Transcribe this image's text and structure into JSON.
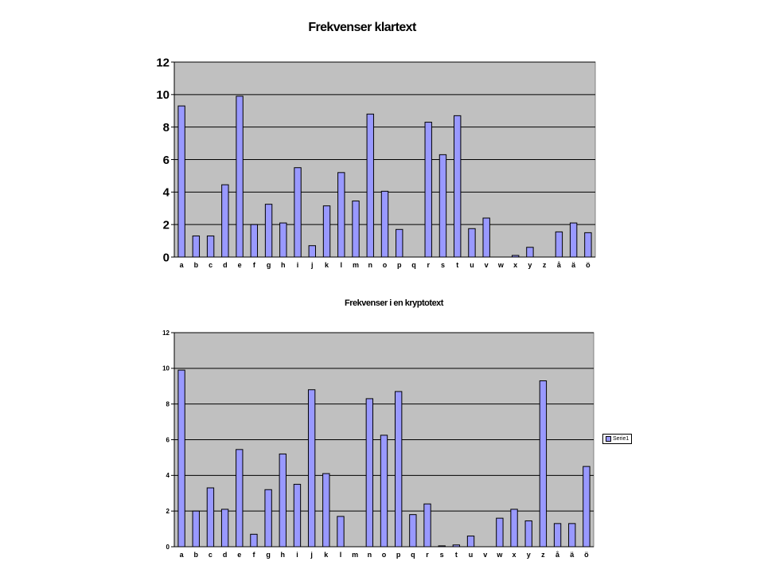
{
  "colors": {
    "bar_fill": "#9999ff",
    "plot_background": "#c0c0c0",
    "gridline": "#000000"
  },
  "chart_data": [
    {
      "type": "bar",
      "title": "Frekvenser klartext",
      "categories": [
        "a",
        "b",
        "c",
        "d",
        "e",
        "f",
        "g",
        "h",
        "i",
        "j",
        "k",
        "l",
        "m",
        "n",
        "o",
        "p",
        "q",
        "r",
        "s",
        "t",
        "u",
        "v",
        "w",
        "x",
        "y",
        "z",
        "å",
        "ä",
        "ö"
      ],
      "values": [
        9.3,
        1.3,
        1.3,
        4.45,
        9.9,
        2.0,
        3.25,
        2.1,
        5.5,
        0.7,
        3.15,
        5.2,
        3.45,
        8.8,
        4.05,
        1.7,
        0,
        8.3,
        6.3,
        8.7,
        1.75,
        2.4,
        0,
        0.1,
        0.6,
        0,
        1.55,
        2.1,
        1.5
      ],
      "ylim": [
        0,
        12
      ],
      "yticks": [
        "0",
        "2",
        "4",
        "6",
        "8",
        "10",
        "12"
      ],
      "grid": true,
      "legend": "none"
    },
    {
      "type": "bar",
      "title": "Frekvenser i en kryptotext",
      "categories": [
        "a",
        "b",
        "c",
        "d",
        "e",
        "f",
        "g",
        "h",
        "i",
        "j",
        "k",
        "l",
        "m",
        "n",
        "o",
        "p",
        "q",
        "r",
        "s",
        "t",
        "u",
        "v",
        "w",
        "x",
        "y",
        "z",
        "å",
        "ä",
        "ö"
      ],
      "series": [
        {
          "name": "Serie1",
          "values": [
            9.9,
            2.0,
            3.3,
            2.1,
            5.45,
            0.7,
            3.2,
            5.2,
            3.5,
            8.8,
            4.1,
            1.7,
            0,
            8.3,
            6.25,
            8.7,
            1.8,
            2.4,
            0.05,
            0.1,
            0.6,
            0,
            1.6,
            2.1,
            1.45,
            9.3,
            1.3,
            1.3,
            4.5
          ]
        }
      ],
      "ylim": [
        0,
        12
      ],
      "yticks": [
        "0",
        "2",
        "4",
        "6",
        "8",
        "10",
        "12"
      ],
      "grid": true,
      "legend": "right"
    }
  ]
}
